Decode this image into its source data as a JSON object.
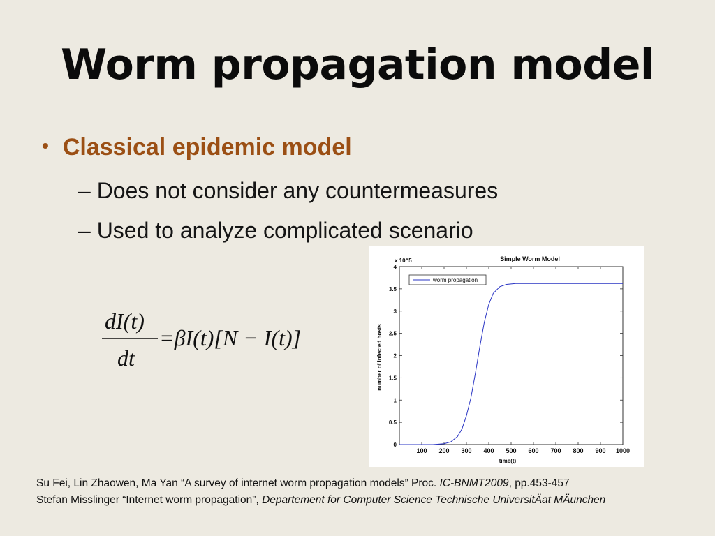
{
  "slide": {
    "title": "Worm propagation model",
    "bullet": {
      "marker": "•",
      "text": "Classical epidemic model"
    },
    "sub_items": [
      "– Does not consider any countermeasures",
      "– Used to analyze complicated scenario"
    ],
    "equation": {
      "numerator": "dI(t)",
      "denominator": "dt",
      "rhs": "=βI(t)[N − I(t)]"
    },
    "references": [
      {
        "a": "Su Fei, Lin Zhaowen, Ma Yan “A survey of internet worm propagation models” Proc. ",
        "b": "IC-BNMT2009",
        "c": ", pp.453-457"
      },
      {
        "a": "Stefan Misslinger “Internet worm propagation”, ",
        "b": "Departement for Computer Science Technische UniversitÄat MÄunchen",
        "c": ""
      }
    ]
  },
  "chart_data": {
    "type": "line",
    "title": "Simple Worm Model",
    "xlabel": "time(t)",
    "ylabel": "number of infected hosts",
    "y_multiplier": "x 10^5",
    "xlim": [
      0,
      1000
    ],
    "ylim": [
      0,
      4
    ],
    "x_ticks": [
      100,
      200,
      300,
      400,
      500,
      600,
      700,
      800,
      900,
      1000
    ],
    "y_ticks": [
      0,
      0.5,
      1,
      1.5,
      2,
      2.5,
      3,
      3.5,
      4
    ],
    "y_tick_labels": [
      "0",
      "0.5",
      "1",
      "1.5",
      "2",
      "2.5",
      "3",
      "3.5",
      "4"
    ],
    "grid": false,
    "legend_position": "top-left",
    "series": [
      {
        "name": "worm propagation",
        "color": "#2a35c4",
        "x": [
          0,
          150,
          200,
          230,
          260,
          280,
          300,
          320,
          340,
          360,
          380,
          400,
          420,
          450,
          480,
          520,
          550,
          600,
          700,
          800,
          900,
          1000
        ],
        "y": [
          0,
          0,
          0.02,
          0.06,
          0.18,
          0.35,
          0.65,
          1.05,
          1.6,
          2.2,
          2.75,
          3.15,
          3.4,
          3.55,
          3.6,
          3.62,
          3.62,
          3.62,
          3.62,
          3.62,
          3.62,
          3.62
        ]
      }
    ]
  }
}
